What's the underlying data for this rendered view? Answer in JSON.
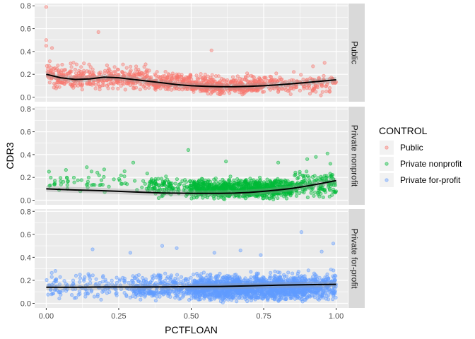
{
  "chart_data": {
    "type": "scatter",
    "xlabel": "PCTFLOAN",
    "ylabel": "CDR3",
    "xlim": [
      -0.04,
      1.04
    ],
    "ylim": [
      -0.04,
      0.82
    ],
    "x_ticks": [
      0,
      0.25,
      0.5,
      0.75,
      1.0
    ],
    "x_tick_labels": [
      "0.00",
      "0.25",
      "0.50",
      "0.75",
      "1.00"
    ],
    "y_ticks": [
      0,
      0.2,
      0.4,
      0.6,
      0.8
    ],
    "y_tick_labels": [
      "0.0",
      "0.2",
      "0.4",
      "0.6",
      "0.8"
    ],
    "grid": true,
    "smooth_line": true,
    "legend": {
      "title": "CONTROL",
      "placement": "right",
      "entries": [
        "Public",
        "Private nonprofit",
        "Private for-profit"
      ]
    },
    "panels": [
      {
        "name": "Public",
        "color": "#F8766D",
        "smooth": [
          [
            0,
            0.2
          ],
          [
            0.05,
            0.17
          ],
          [
            0.1,
            0.155
          ],
          [
            0.15,
            0.16
          ],
          [
            0.2,
            0.175
          ],
          [
            0.25,
            0.17
          ],
          [
            0.3,
            0.155
          ],
          [
            0.35,
            0.14
          ],
          [
            0.4,
            0.125
          ],
          [
            0.45,
            0.11
          ],
          [
            0.5,
            0.1
          ],
          [
            0.55,
            0.095
          ],
          [
            0.6,
            0.092
          ],
          [
            0.65,
            0.092
          ],
          [
            0.7,
            0.095
          ],
          [
            0.75,
            0.1
          ],
          [
            0.8,
            0.108
          ],
          [
            0.85,
            0.118
          ],
          [
            0.9,
            0.128
          ],
          [
            0.95,
            0.14
          ],
          [
            1.0,
            0.152
          ]
        ],
        "clusters": [
          {
            "x": [
              0,
              0.1
            ],
            "y": [
              0.05,
              0.34
            ],
            "n": 110
          },
          {
            "x": [
              0.1,
              0.35
            ],
            "y": [
              0.04,
              0.32
            ],
            "n": 260
          },
          {
            "x": [
              0.35,
              0.5
            ],
            "y": [
              0.03,
              0.26
            ],
            "n": 200
          },
          {
            "x": [
              0.5,
              0.75
            ],
            "y": [
              0.01,
              0.22
            ],
            "n": 360
          },
          {
            "x": [
              0.75,
              1.0
            ],
            "y": [
              0.01,
              0.24
            ],
            "n": 150
          }
        ],
        "outliers": [
          [
            0,
            0.79
          ],
          [
            0,
            0.5
          ],
          [
            0,
            0.45
          ],
          [
            0.02,
            0.43
          ],
          [
            0.18,
            0.57
          ],
          [
            0.57,
            0.41
          ],
          [
            0.92,
            0.27
          ],
          [
            0.96,
            0.3
          ]
        ]
      },
      {
        "name": "Private nonprofit",
        "color": "#00BA38",
        "smooth": [
          [
            0,
            0.1
          ],
          [
            0.05,
            0.095
          ],
          [
            0.1,
            0.09
          ],
          [
            0.15,
            0.087
          ],
          [
            0.2,
            0.083
          ],
          [
            0.25,
            0.078
          ],
          [
            0.3,
            0.073
          ],
          [
            0.35,
            0.068
          ],
          [
            0.4,
            0.064
          ],
          [
            0.45,
            0.062
          ],
          [
            0.5,
            0.06
          ],
          [
            0.55,
            0.06
          ],
          [
            0.6,
            0.061
          ],
          [
            0.65,
            0.063
          ],
          [
            0.7,
            0.068
          ],
          [
            0.75,
            0.078
          ],
          [
            0.8,
            0.09
          ],
          [
            0.85,
            0.105
          ],
          [
            0.9,
            0.125
          ],
          [
            0.95,
            0.148
          ],
          [
            1.0,
            0.172
          ]
        ],
        "clusters": [
          {
            "x": [
              0,
              0.35
            ],
            "y": [
              0.02,
              0.3
            ],
            "n": 60
          },
          {
            "x": [
              0.35,
              0.5
            ],
            "y": [
              0.0,
              0.25
            ],
            "n": 120
          },
          {
            "x": [
              0.5,
              0.85
            ],
            "y": [
              0.0,
              0.22
            ],
            "n": 900
          },
          {
            "x": [
              0.85,
              1.0
            ],
            "y": [
              0.0,
              0.3
            ],
            "n": 150
          }
        ],
        "outliers": [
          [
            0.49,
            0.44
          ],
          [
            0.97,
            0.41
          ],
          [
            0.93,
            0.38
          ],
          [
            0.9,
            0.36
          ],
          [
            0.3,
            0.33
          ],
          [
            0.62,
            0.34
          ],
          [
            0.14,
            0.29
          ],
          [
            0.2,
            0.27
          ],
          [
            0.8,
            0.33
          ],
          [
            0.98,
            0.32
          ]
        ]
      },
      {
        "name": "Private for-profit",
        "color": "#619CFF",
        "smooth": [
          [
            0,
            0.14
          ],
          [
            0.1,
            0.14
          ],
          [
            0.2,
            0.142
          ],
          [
            0.3,
            0.142
          ],
          [
            0.4,
            0.143
          ],
          [
            0.5,
            0.145
          ],
          [
            0.6,
            0.147
          ],
          [
            0.7,
            0.152
          ],
          [
            0.8,
            0.158
          ],
          [
            0.9,
            0.162
          ],
          [
            1.0,
            0.165
          ]
        ],
        "clusters": [
          {
            "x": [
              0,
              0.3
            ],
            "y": [
              0.02,
              0.3
            ],
            "n": 150
          },
          {
            "x": [
              0.3,
              0.5
            ],
            "y": [
              0.0,
              0.3
            ],
            "n": 300
          },
          {
            "x": [
              0.5,
              0.9
            ],
            "y": [
              0.0,
              0.3
            ],
            "n": 1500
          },
          {
            "x": [
              0.9,
              1.0
            ],
            "y": [
              0.0,
              0.32
            ],
            "n": 200
          }
        ],
        "outliers": [
          [
            0.88,
            0.62
          ],
          [
            0.4,
            0.5
          ],
          [
            0.45,
            0.48
          ],
          [
            0.16,
            0.47
          ],
          [
            0.67,
            0.46
          ],
          [
            0.99,
            0.52
          ],
          [
            0.29,
            0.44
          ],
          [
            0.58,
            0.44
          ],
          [
            0.74,
            0.42
          ],
          [
            0.95,
            0.45
          ]
        ]
      }
    ]
  }
}
